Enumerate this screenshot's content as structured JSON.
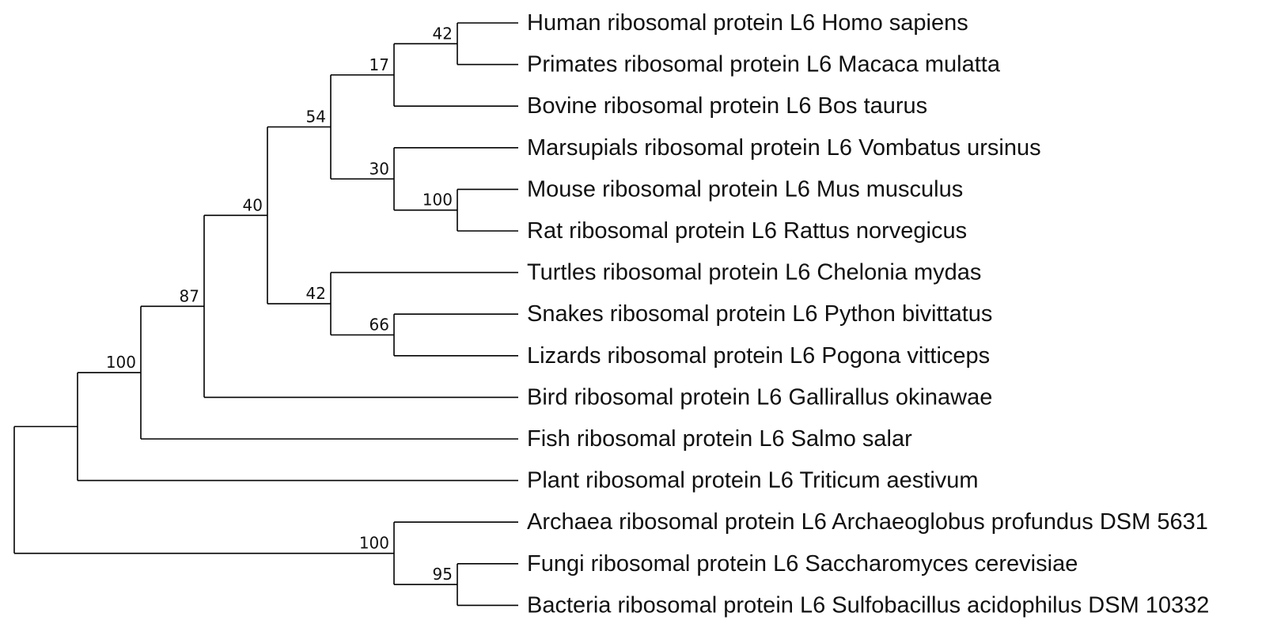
{
  "tree": {
    "root": {
      "children": [
        {
          "support": "100",
          "children": [
            {
              "support": "87",
              "children": [
                {
                  "support": "40",
                  "children": [
                    {
                      "support": "54",
                      "children": [
                        {
                          "support": "17",
                          "children": [
                            {
                              "support": "42",
                              "children": [
                                {
                                  "label": "Human ribosomal protein L6 Homo sapiens"
                                },
                                {
                                  "label": "Primates ribosomal protein L6 Macaca mulatta"
                                }
                              ]
                            },
                            {
                              "label": "Bovine ribosomal protein L6 Bos taurus"
                            }
                          ]
                        },
                        {
                          "support": "30",
                          "children": [
                            {
                              "label": "Marsupials ribosomal protein L6 Vombatus ursinus"
                            },
                            {
                              "support": "100",
                              "children": [
                                {
                                  "label": "Mouse ribosomal protein L6 Mus musculus"
                                },
                                {
                                  "label": "Rat ribosomal protein L6 Rattus norvegicus"
                                }
                              ]
                            }
                          ]
                        }
                      ]
                    },
                    {
                      "support": "42",
                      "children": [
                        {
                          "label": "Turtles ribosomal protein L6 Chelonia mydas"
                        },
                        {
                          "support": "66",
                          "children": [
                            {
                              "label": "Snakes ribosomal protein L6 Python bivittatus"
                            },
                            {
                              "label": "Lizards ribosomal protein L6 Pogona vitticeps"
                            }
                          ]
                        }
                      ]
                    }
                  ]
                },
                {
                  "label": "Bird ribosomal protein L6 Gallirallus okinawae"
                }
              ]
            },
            {
              "label": "Fish ribosomal protein L6 Salmo salar"
            }
          ]
        },
        {
          "label": "Plant ribosomal protein L6 Triticum aestivum"
        }
      ]
    },
    "outgroup": {
      "support": "100",
      "children": [
        {
          "label": "Archaea ribosomal protein L6 Archaeoglobus profundus DSM 5631"
        },
        {
          "support": "95",
          "children": [
            {
              "label": "Fungi ribosomal protein L6 Saccharomyces cerevisiae"
            },
            {
              "label": "Bacteria ribosomal protein L6 Sulfobacillus acidophilus DSM 10332"
            }
          ]
        }
      ]
    }
  }
}
